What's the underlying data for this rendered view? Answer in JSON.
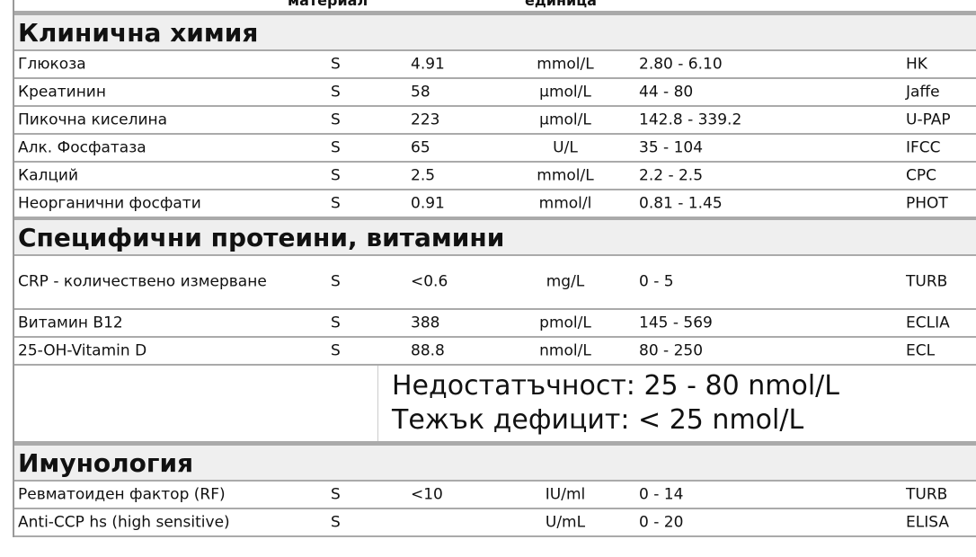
{
  "columns": {
    "material": "материал",
    "unit": "единица"
  },
  "sections": [
    {
      "title": "Клинична химия",
      "rows": [
        {
          "name": "Глюкоза",
          "material": "S",
          "value": "4.91",
          "unit": "mmol/L",
          "range": "2.80 - 6.10",
          "method": "HK"
        },
        {
          "name": "Креатинин",
          "material": "S",
          "value": "58",
          "unit": "µmol/L",
          "range": "44 - 80",
          "method": "Jaffe"
        },
        {
          "name": "Пикочна киселина",
          "material": "S",
          "value": "223",
          "unit": "µmol/L",
          "range": "142.8 - 339.2",
          "method": "U-PAP"
        },
        {
          "name": "Алк. Фосфатаза",
          "material": "S",
          "value": "65",
          "unit": "U/L",
          "range": "35 - 104",
          "method": "IFCC"
        },
        {
          "name": "Калций",
          "material": "S",
          "value": "2.5",
          "unit": "mmol/L",
          "range": "2.2 - 2.5",
          "method": "CPC"
        },
        {
          "name": "Неорганични фосфати",
          "material": "S",
          "value": "0.91",
          "unit": "mmol/l",
          "range": "0.81 - 1.45",
          "method": "PHOT"
        }
      ]
    },
    {
      "title": "Специфични протеини, витамини",
      "rows": [
        {
          "name": "CRP - количествено измерване",
          "material": "S",
          "value": "<0.6",
          "unit": "mg/L",
          "range": "0 - 5",
          "method": "TURB"
        },
        {
          "name": "Витамин B12",
          "material": "S",
          "value": "388",
          "unit": "pmol/L",
          "range": "145 - 569",
          "method": "ECLIA"
        },
        {
          "name": "25-OH-Vitamin D",
          "material": "S",
          "value": "88.8",
          "unit": "nmol/L",
          "range": "80 - 250",
          "method": "ECL"
        }
      ],
      "note": [
        "Недостатъчност: 25 - 80 nmol/L",
        "Тежък дефицит: < 25 nmol/L"
      ]
    },
    {
      "title": "Имунология",
      "rows": [
        {
          "name": "Ревматоиден фактор (RF)",
          "material": "S",
          "value": "<10",
          "unit": "IU/ml",
          "range": "0 - 14",
          "method": "TURB"
        },
        {
          "name": "Anti-CCP hs (high sensitive)",
          "material": "S",
          "value": "",
          "unit": "U/mL",
          "range": "0 - 20",
          "method": "ELISA"
        }
      ]
    }
  ]
}
